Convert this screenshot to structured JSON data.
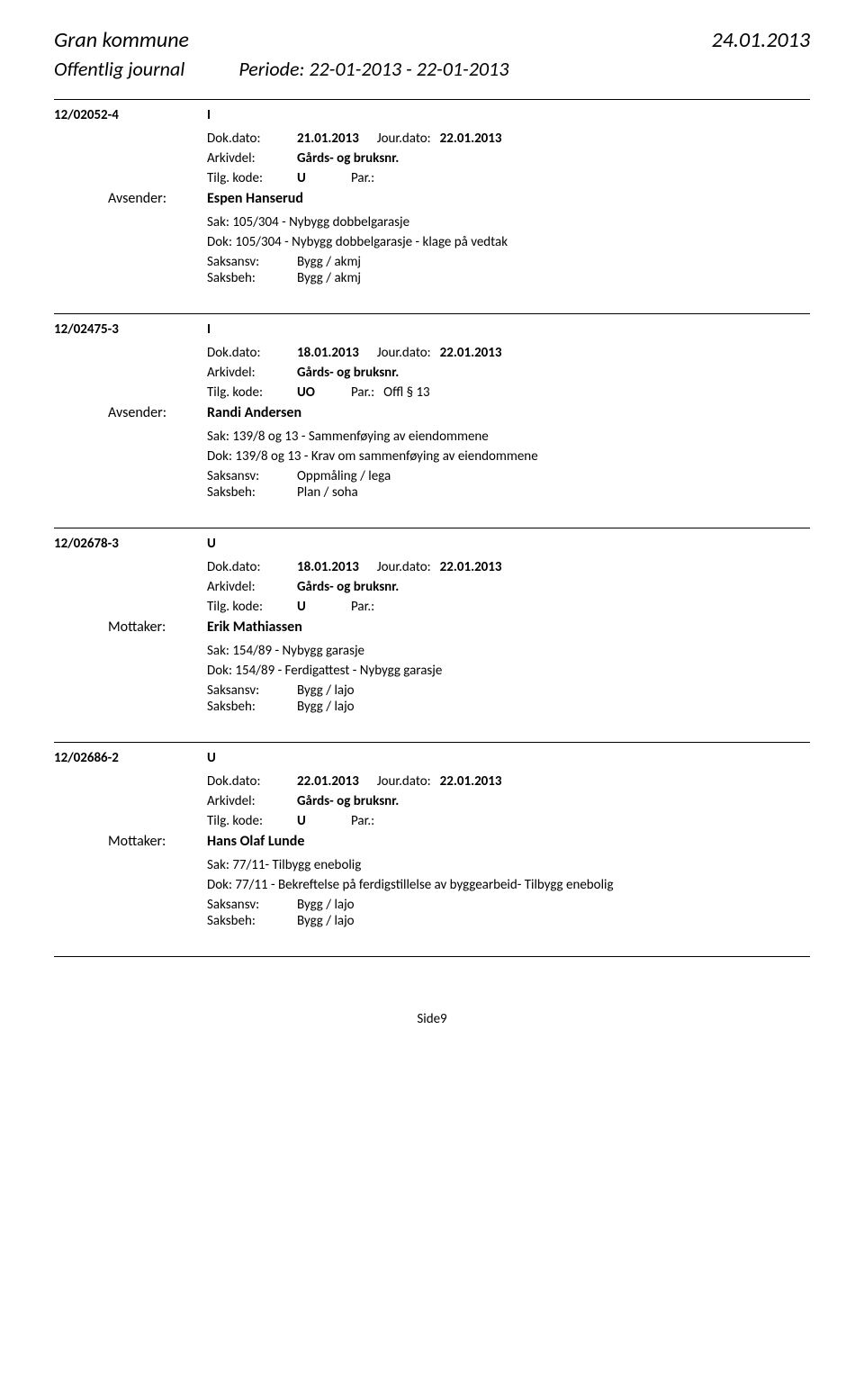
{
  "header": {
    "municipality": "Gran kommune",
    "date": "24.01.2013",
    "journal_title": "Offentlig journal",
    "period": "Periode: 22-01-2013 - 22-01-2013"
  },
  "entries": [
    {
      "id": "12/02052-4",
      "type": "I",
      "dok_dato_label": "Dok.dato:",
      "dok_dato": "21.01.2013",
      "jour_dato_label": "Jour.dato:",
      "jour_dato": "22.01.2013",
      "arkivdel_label": "Arkivdel:",
      "arkivdel": "Gårds- og bruksnr.",
      "tilg_label": "Tilg. kode:",
      "tilg_kode": "U",
      "par_label": "Par.:",
      "par_value": "",
      "sender_prefix": "Avsender:",
      "sender_name": "Espen Hanserud",
      "sak_label": "Sak:",
      "sak": "105/304 - Nybygg dobbelgarasje",
      "dok_label": "Dok:",
      "dok": "105/304 - Nybygg dobbelgarasje - klage på vedtak",
      "saksansv_label": "Saksansv:",
      "saksansv": "Bygg / akmj",
      "saksbeh_label": "Saksbeh:",
      "saksbeh": "Bygg / akmj"
    },
    {
      "id": "12/02475-3",
      "type": "I",
      "dok_dato_label": "Dok.dato:",
      "dok_dato": "18.01.2013",
      "jour_dato_label": "Jour.dato:",
      "jour_dato": "22.01.2013",
      "arkivdel_label": "Arkivdel:",
      "arkivdel": "Gårds- og bruksnr.",
      "tilg_label": "Tilg. kode:",
      "tilg_kode": "UO",
      "par_label": "Par.:",
      "par_value": "Offl § 13",
      "sender_prefix": "Avsender:",
      "sender_name": "Randi Andersen",
      "sak_label": "Sak:",
      "sak": "139/8 og 13 - Sammenføying av eiendommene",
      "dok_label": "Dok:",
      "dok": "139/8 og 13 - Krav om sammenføying av eiendommene",
      "saksansv_label": "Saksansv:",
      "saksansv": "Oppmåling / lega",
      "saksbeh_label": "Saksbeh:",
      "saksbeh": "Plan / soha"
    },
    {
      "id": "12/02678-3",
      "type": "U",
      "dok_dato_label": "Dok.dato:",
      "dok_dato": "18.01.2013",
      "jour_dato_label": "Jour.dato:",
      "jour_dato": "22.01.2013",
      "arkivdel_label": "Arkivdel:",
      "arkivdel": "Gårds- og bruksnr.",
      "tilg_label": "Tilg. kode:",
      "tilg_kode": "U",
      "par_label": "Par.:",
      "par_value": "",
      "sender_prefix": "Mottaker:",
      "sender_name": "Erik Mathiassen",
      "sak_label": "Sak:",
      "sak": "154/89 - Nybygg garasje",
      "dok_label": "Dok:",
      "dok": "154/89 - Ferdigattest - Nybygg garasje",
      "saksansv_label": "Saksansv:",
      "saksansv": "Bygg / lajo",
      "saksbeh_label": "Saksbeh:",
      "saksbeh": "Bygg / lajo"
    },
    {
      "id": "12/02686-2",
      "type": "U",
      "dok_dato_label": "Dok.dato:",
      "dok_dato": "22.01.2013",
      "jour_dato_label": "Jour.dato:",
      "jour_dato": "22.01.2013",
      "arkivdel_label": "Arkivdel:",
      "arkivdel": "Gårds- og bruksnr.",
      "tilg_label": "Tilg. kode:",
      "tilg_kode": "U",
      "par_label": "Par.:",
      "par_value": "",
      "sender_prefix": "Mottaker:",
      "sender_name": "Hans Olaf Lunde",
      "sak_label": "Sak:",
      "sak": "77/11- Tilbygg enebolig",
      "dok_label": "Dok:",
      "dok": "77/11 - Bekreftelse på ferdigstillelse av byggearbeid- Tilbygg enebolig",
      "saksansv_label": "Saksansv:",
      "saksansv": "Bygg / lajo",
      "saksbeh_label": "Saksbeh:",
      "saksbeh": "Bygg / lajo"
    }
  ],
  "page_number": "Side9"
}
